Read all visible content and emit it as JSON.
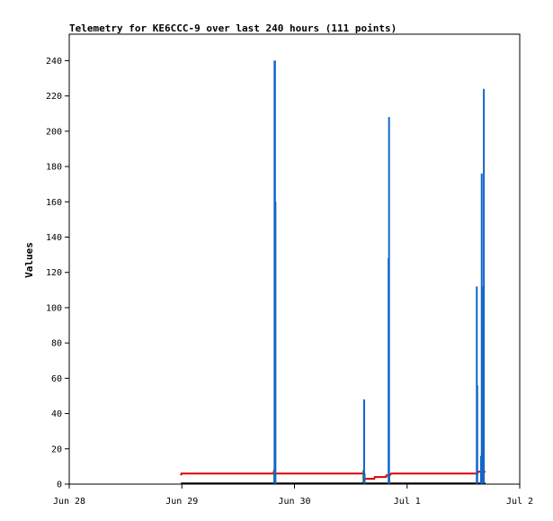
{
  "chart_data": {
    "type": "line",
    "title": "Telemetry for KE6CCC-9 over last 240 hours (111 points)",
    "xlabel": "",
    "ylabel": "Values",
    "ylim": [
      0,
      255
    ],
    "yticks": [
      0,
      20,
      40,
      60,
      80,
      100,
      120,
      140,
      160,
      180,
      200,
      220,
      240
    ],
    "xlim": [
      0,
      96
    ],
    "xtick_labels": [
      {
        "label": "Jun 28",
        "x": 0
      },
      {
        "label": "Jun 29",
        "x": 24
      },
      {
        "label": "Jun 30",
        "x": 48
      },
      {
        "label": "Jul 1",
        "x": 72
      },
      {
        "label": "Jul 2",
        "x": 96
      }
    ],
    "grid": false,
    "legend": "none",
    "colors": {
      "series_red": "#dd0000",
      "series_green": "#009900",
      "series_blue": "#1466c8",
      "series_black": "#000000",
      "axes": "#000000",
      "background": "#ffffff"
    },
    "series": [
      {
        "color_key": "series_red",
        "style": "line",
        "points": [
          [
            23.8,
            5
          ],
          [
            23.9,
            6
          ],
          [
            43.5,
            6
          ],
          [
            43.6,
            7
          ],
          [
            43.8,
            6
          ],
          [
            62.8,
            6
          ],
          [
            63.0,
            3
          ],
          [
            65.0,
            3
          ],
          [
            65.1,
            4
          ],
          [
            67.5,
            4
          ],
          [
            67.6,
            5
          ],
          [
            68.3,
            5
          ],
          [
            68.6,
            6
          ],
          [
            87.0,
            6
          ],
          [
            87.1,
            7
          ],
          [
            88.7,
            7
          ]
        ]
      },
      {
        "color_key": "series_green",
        "style": "spikes",
        "points": [
          [
            43.7,
            7
          ],
          [
            62.7,
            8
          ],
          [
            62.9,
            5
          ],
          [
            68.2,
            5
          ],
          [
            86.9,
            7
          ],
          [
            88.0,
            6
          ]
        ]
      },
      {
        "color_key": "series_black",
        "style": "line",
        "points": [
          [
            23.8,
            0.4
          ],
          [
            88.7,
            0.4
          ]
        ]
      },
      {
        "color_key": "series_blue",
        "style": "spikes",
        "points": [
          [
            43.75,
            240
          ],
          [
            43.85,
            240
          ],
          [
            43.95,
            160
          ],
          [
            62.85,
            48
          ],
          [
            62.95,
            6
          ],
          [
            68.05,
            128
          ],
          [
            68.15,
            208
          ],
          [
            86.85,
            112
          ],
          [
            86.95,
            56
          ],
          [
            87.75,
            16
          ],
          [
            87.9,
            176
          ],
          [
            88.05,
            88
          ],
          [
            88.25,
            112
          ],
          [
            88.35,
            224
          ]
        ]
      }
    ]
  }
}
